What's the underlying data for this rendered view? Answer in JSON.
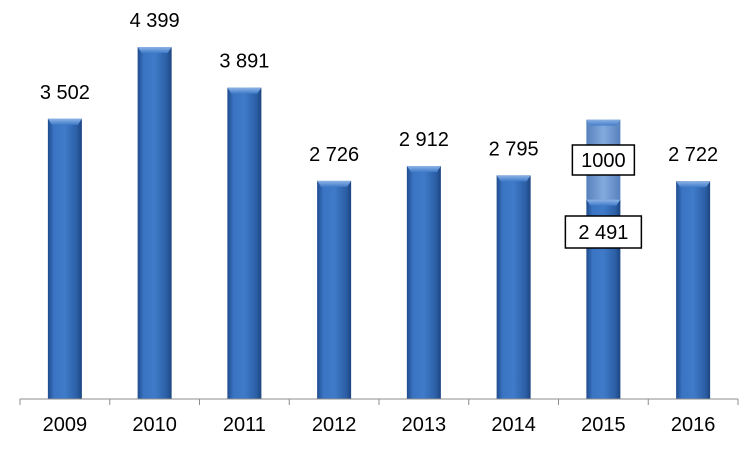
{
  "chart_data": {
    "type": "bar",
    "categories": [
      "2009",
      "2010",
      "2011",
      "2012",
      "2013",
      "2014",
      "2015",
      "2016"
    ],
    "values": [
      3502,
      4399,
      3891,
      2726,
      2912,
      2795,
      2491,
      2722
    ],
    "value_labels": [
      "3 502",
      "4 399",
      "3 891",
      "2 726",
      "2 912",
      "2 795",
      "2 491",
      "2 722"
    ],
    "stacked_extra": {
      "category": "2015",
      "value": 1000,
      "label": "1000"
    },
    "title": "",
    "xlabel": "",
    "ylabel": "",
    "ylim": [
      0,
      4700
    ],
    "grid": false,
    "legend": "none",
    "colors": {
      "bar_main": "#2e63a8",
      "bar_light": "#5b8fd1",
      "bar_dark": "#1c4581",
      "axis": "#8c8c8c"
    }
  }
}
